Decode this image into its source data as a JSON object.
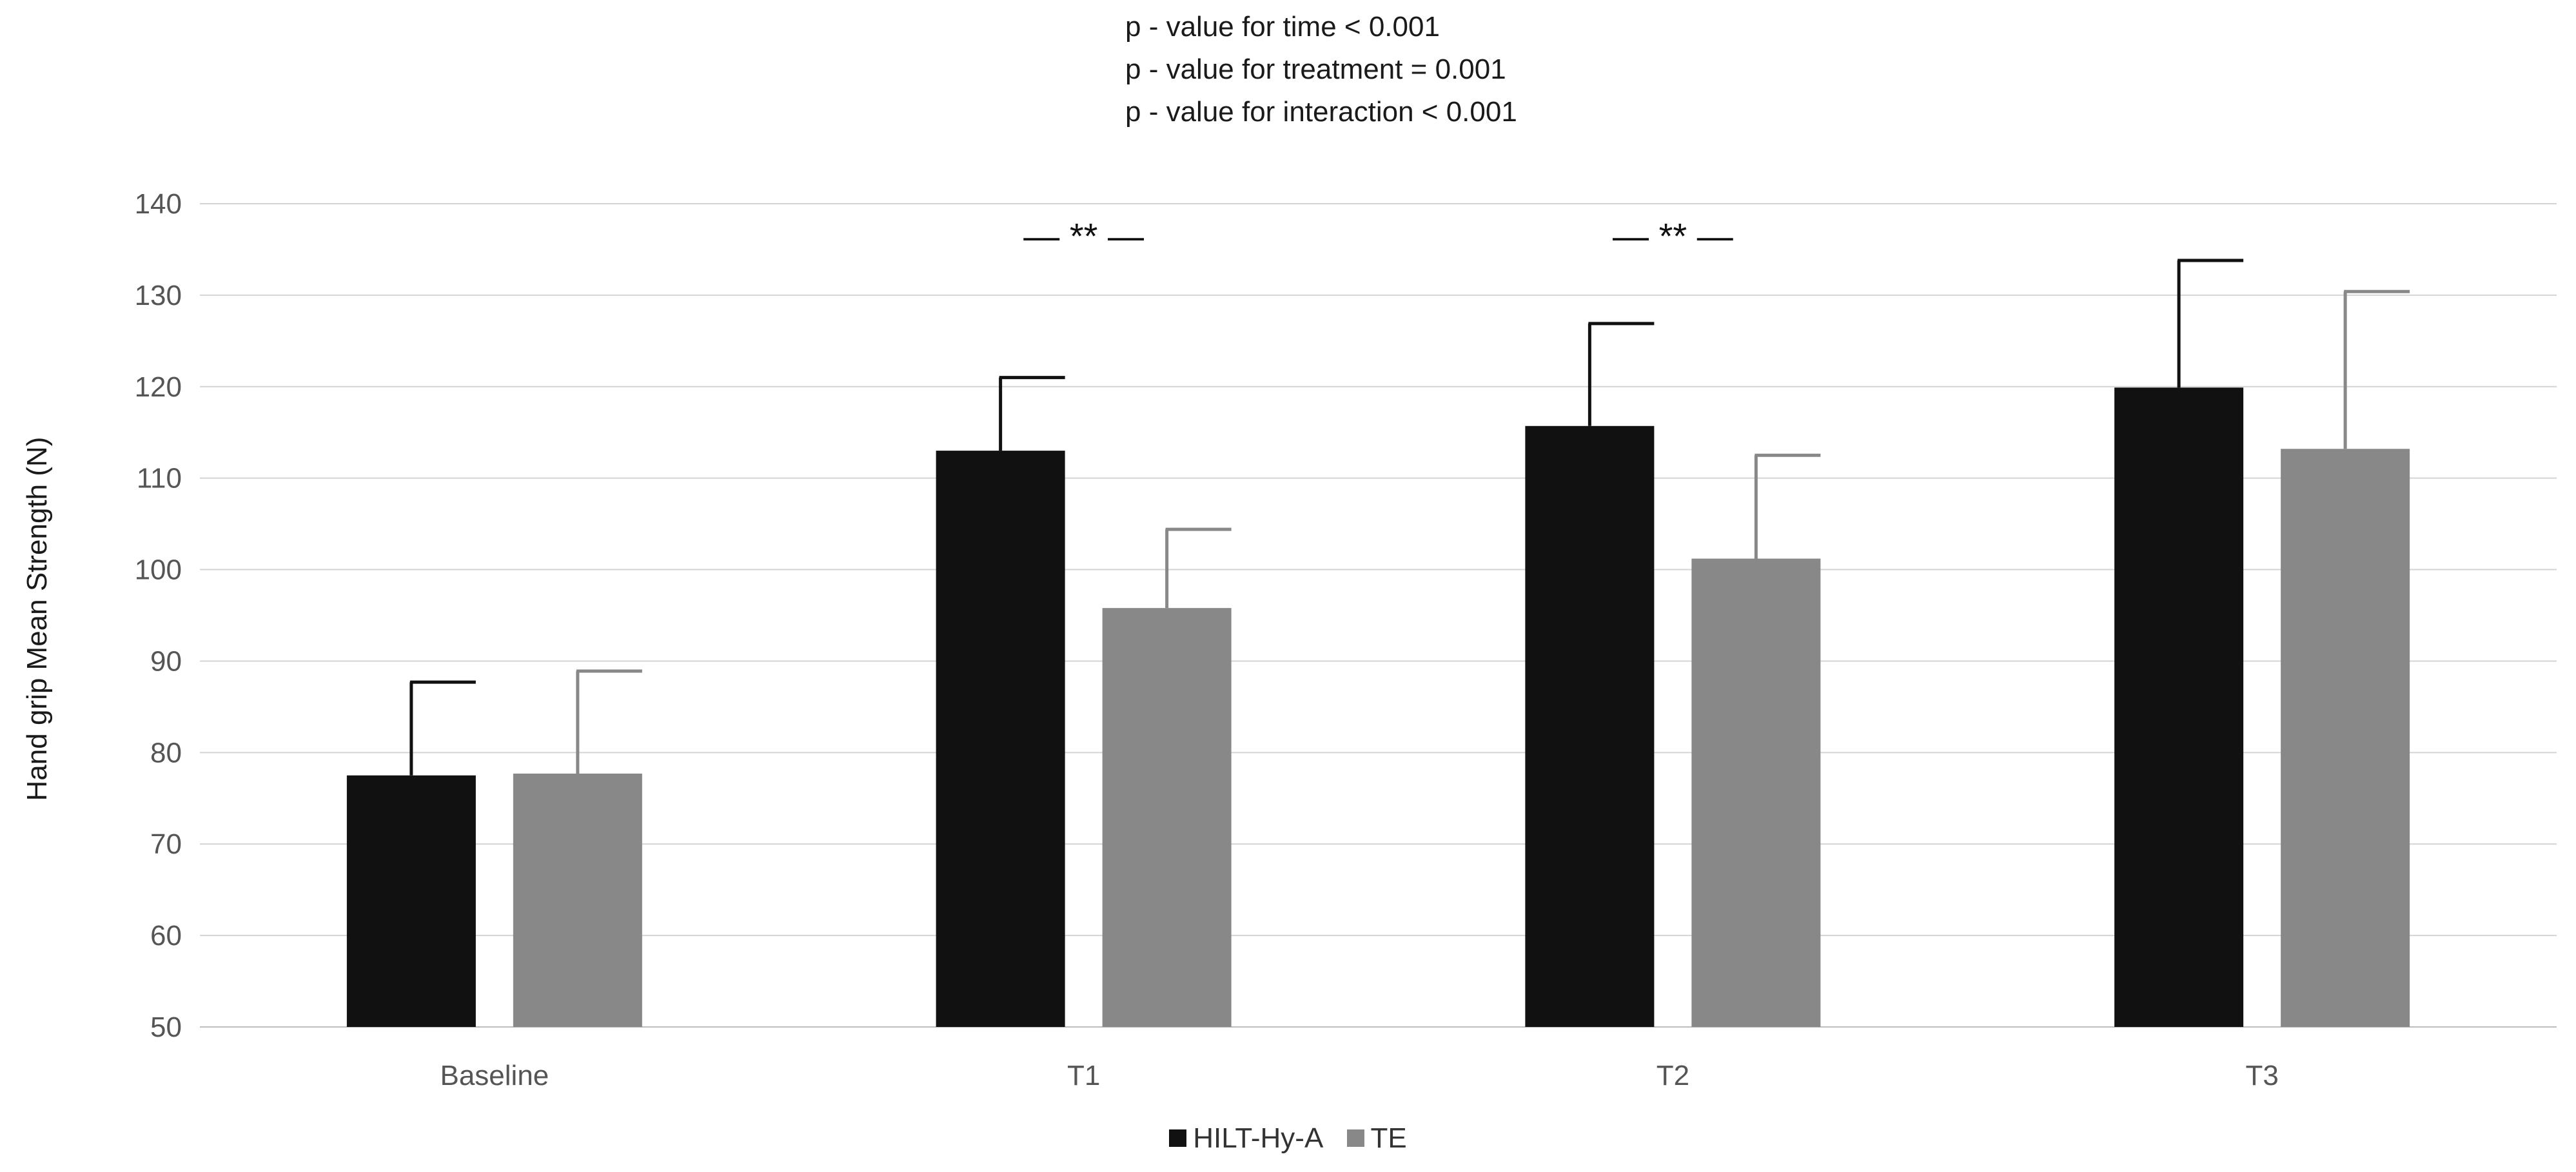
{
  "annotations": {
    "p_time": "p - value for time < 0.001",
    "p_treatment": "p - value for treatment = 0.001",
    "p_interaction": "p - value for interaction < 0.001"
  },
  "chart_data": {
    "type": "bar",
    "title": "",
    "xlabel": "",
    "ylabel": "Hand grip Mean Strength (N)",
    "ylim": [
      50,
      140
    ],
    "yticks": [
      50,
      60,
      70,
      80,
      90,
      100,
      110,
      120,
      130,
      140
    ],
    "grid": true,
    "legend_position": "bottom",
    "categories": [
      "Baseline",
      "T1",
      "T2",
      "T3"
    ],
    "series": [
      {
        "name": "HILT-Hy-A",
        "color": "#111111",
        "values": [
          77.5,
          113.0,
          115.7,
          119.9
        ],
        "error": [
          10.2,
          8.0,
          11.2,
          13.9
        ]
      },
      {
        "name": "TE",
        "color": "#888888",
        "values": [
          77.7,
          95.8,
          101.2,
          113.2
        ],
        "error": [
          11.2,
          8.6,
          11.3,
          17.2
        ]
      }
    ],
    "significance": [
      {
        "category": "T1",
        "label": "— ** —",
        "y": 136.5
      },
      {
        "category": "T2",
        "label": "— ** —",
        "y": 136.5
      }
    ]
  }
}
